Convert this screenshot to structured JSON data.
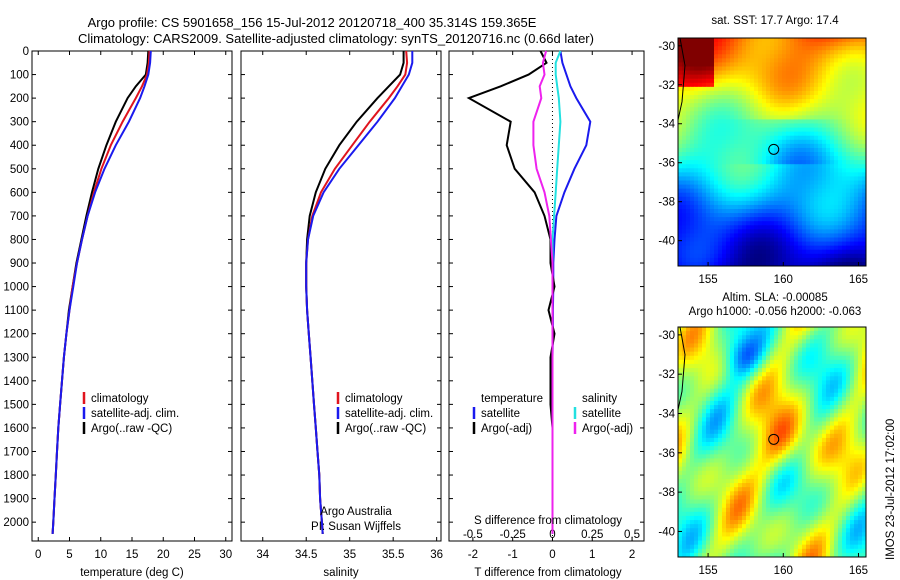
{
  "title": {
    "line1": "Argo profile: CS 5901658_156 15-Jul-2012 20120718_400 35.314S 159.365E",
    "line2": "Climatology: CARS2009. Satellite-adjusted climatology: synTS_20120716.nc (0.66d later)"
  },
  "side_text": "IMOS 23-Jul-2012 17:02:00",
  "credit": {
    "line1": "Argo Australia",
    "line2": "PI: Susan Wijffels"
  },
  "colors": {
    "climatology": "#e0141e",
    "satellite": "#1a1aee",
    "argo": "#000000",
    "sal_satellite": "#22e0e0",
    "sal_argo": "#ee22ee"
  },
  "chart_data": [
    {
      "type": "line",
      "ylabel": "",
      "xlabel": "temperature (deg C)",
      "xlim": [
        -1,
        31
      ],
      "ylim": [
        2080,
        0
      ],
      "xticks": [
        "0",
        "5",
        "10",
        "15",
        "20",
        "25",
        "30"
      ],
      "yticks": [
        "0",
        "100",
        "200",
        "300",
        "400",
        "500",
        "600",
        "700",
        "800",
        "900",
        "1000",
        "1100",
        "1200",
        "1300",
        "1400",
        "1500",
        "1600",
        "1700",
        "1800",
        "1900",
        "2000"
      ],
      "legend": [
        "climatology",
        "satellite-adj. clim.",
        "Argo(..raw -QC)"
      ],
      "legend_position": "lower-center",
      "depth": [
        0,
        50,
        100,
        150,
        200,
        300,
        400,
        500,
        600,
        700,
        800,
        900,
        1000,
        1100,
        1200,
        1300,
        1400,
        1500,
        1600,
        1700,
        1800,
        1900,
        2000,
        2050
      ],
      "series": [
        {
          "name": "climatology",
          "values": [
            17.8,
            17.7,
            17.4,
            16.6,
            15.6,
            13.5,
            11.6,
            10.1,
            8.9,
            7.9,
            7.0,
            6.2,
            5.5,
            5.0,
            4.5,
            4.1,
            3.8,
            3.5,
            3.2,
            3.0,
            2.8,
            2.6,
            2.4,
            2.3
          ]
        },
        {
          "name": "satellite-adj. clim.",
          "values": [
            18.0,
            17.9,
            17.6,
            17.0,
            16.3,
            14.5,
            12.4,
            10.6,
            9.1,
            7.9,
            7.0,
            6.2,
            5.6,
            5.0,
            4.5,
            4.1,
            3.8,
            3.5,
            3.2,
            3.0,
            2.8,
            2.6,
            2.4,
            2.3
          ]
        },
        {
          "name": "Argo(..raw -QC)",
          "values": [
            17.6,
            17.5,
            17.2,
            15.6,
            14.3,
            12.4,
            10.9,
            9.6,
            8.6,
            7.7,
            6.9,
            6.1,
            5.5,
            4.9,
            4.5,
            4.1,
            3.8,
            3.5,
            3.2,
            3.0,
            2.8,
            2.6,
            2.4,
            2.3
          ]
        }
      ]
    },
    {
      "type": "line",
      "ylabel": "",
      "xlabel": "salinity",
      "xlim": [
        33.75,
        36.05
      ],
      "ylim": [
        2080,
        0
      ],
      "xticks": [
        "34",
        "34.5",
        "35",
        "35.5",
        "36"
      ],
      "legend": [
        "climatology",
        "satellite-adj. clim.",
        "Argo(..raw -QC)"
      ],
      "legend_position": "lower-center",
      "depth": [
        0,
        50,
        100,
        150,
        200,
        300,
        400,
        500,
        600,
        700,
        800,
        900,
        1000,
        1100,
        1200,
        1300,
        1400,
        1500,
        1600,
        1700,
        1800,
        1900,
        2000,
        2050
      ],
      "series": [
        {
          "name": "climatology",
          "values": [
            35.65,
            35.66,
            35.64,
            35.55,
            35.45,
            35.23,
            35.03,
            34.83,
            34.67,
            34.57,
            34.52,
            34.5,
            34.5,
            34.51,
            34.53,
            34.55,
            34.57,
            34.59,
            34.61,
            34.63,
            34.65,
            34.66,
            34.68,
            34.69
          ]
        },
        {
          "name": "satellite-adj. clim.",
          "values": [
            35.72,
            35.72,
            35.68,
            35.6,
            35.52,
            35.32,
            35.1,
            34.88,
            34.7,
            34.58,
            34.52,
            34.5,
            34.5,
            34.51,
            34.53,
            34.55,
            34.57,
            34.59,
            34.61,
            34.63,
            34.65,
            34.66,
            34.68,
            34.69
          ]
        },
        {
          "name": "Argo(..raw -QC)",
          "values": [
            35.62,
            35.62,
            35.58,
            35.45,
            35.32,
            35.08,
            34.88,
            34.72,
            34.61,
            34.54,
            34.51,
            34.5,
            34.5,
            34.51,
            34.53,
            34.55,
            34.57,
            34.59,
            34.61,
            34.63,
            34.65,
            34.66,
            34.68,
            34.69
          ]
        }
      ]
    },
    {
      "type": "line",
      "xlabel": "T difference from climatology",
      "xlabel_top": "S difference from climatology",
      "xlim": [
        -2.6,
        2.3
      ],
      "ylim": [
        2080,
        0
      ],
      "xticks": [
        "-2",
        "-1",
        "0",
        "1",
        "2"
      ],
      "xticks_top": [
        "-0.5",
        "-0.25",
        "0",
        "0.25",
        "0.5"
      ],
      "legend_temperature": {
        "heading": "temperature",
        "items": [
          "satellite",
          "Argo(-adj)"
        ]
      },
      "legend_salinity": {
        "heading": "salinity",
        "items": [
          "satellite",
          "Argo(-adj)"
        ]
      },
      "depth": [
        0,
        50,
        100,
        150,
        200,
        300,
        400,
        500,
        600,
        700,
        800,
        900,
        1000,
        1100,
        1200,
        1300,
        1400,
        1500,
        1600,
        1700,
        1800,
        1900,
        2000,
        2050
      ],
      "series": [
        {
          "name": "T satellite",
          "values": [
            0.2,
            0.25,
            0.35,
            0.45,
            0.6,
            0.95,
            0.85,
            0.55,
            0.3,
            0.1,
            0.05,
            0.02,
            0.02,
            0.01,
            0.01,
            0.0,
            0.0,
            0.0,
            0.0,
            0.0,
            0.0,
            0.0,
            0.0,
            0.0
          ]
        },
        {
          "name": "T Argo(-adj)",
          "values": [
            -0.3,
            -0.15,
            -0.6,
            -1.3,
            -2.1,
            -1.05,
            -1.15,
            -0.95,
            -0.45,
            -0.2,
            -0.05,
            -0.05,
            0.05,
            -0.1,
            0.05,
            -0.05,
            -0.05,
            -0.05,
            0.0,
            0.0,
            0.0,
            0.0,
            0.0,
            0.0
          ]
        },
        {
          "name": "S satellite",
          "values": [
            0.05,
            0.02,
            0.02,
            0.03,
            0.04,
            0.05,
            0.04,
            0.03,
            0.02,
            0.01,
            0.0,
            0.0,
            0.0,
            0.0,
            0.0,
            0.0,
            0.0,
            0.0,
            0.0,
            0.0,
            0.0,
            0.0,
            0.0,
            0.0
          ]
        },
        {
          "name": "S Argo(-adj)",
          "values": [
            -0.04,
            -0.06,
            -0.05,
            -0.08,
            -0.07,
            -0.12,
            -0.12,
            -0.1,
            -0.05,
            -0.02,
            -0.01,
            0.0,
            0.0,
            0.0,
            0.0,
            0.0,
            0.0,
            0.0,
            0.0,
            0.0,
            0.0,
            0.0,
            0.0,
            0.0
          ]
        }
      ]
    },
    {
      "type": "heatmap",
      "title": "sat. SST: 17.7  Argo: 17.4",
      "xlim": [
        153,
        165.5
      ],
      "ylim": [
        -41.3,
        -29.6
      ],
      "xticks": [
        "155",
        "160",
        "165"
      ],
      "yticks": [
        "-30",
        "-32",
        "-34",
        "-36",
        "-38",
        "-40"
      ],
      "marker": {
        "lon": 159.365,
        "lat": -35.314
      },
      "colormap": "jet"
    },
    {
      "type": "heatmap",
      "title": "Altim. SLA: -0.00085",
      "subtitle": "Argo h1000: -0.056  h2000: -0.063",
      "xlim": [
        153,
        165.5
      ],
      "ylim": [
        -41.3,
        -29.6
      ],
      "xticks": [
        "155",
        "160",
        "165"
      ],
      "yticks": [
        "-30",
        "-32",
        "-34",
        "-36",
        "-38",
        "-40"
      ],
      "marker": {
        "lon": 159.365,
        "lat": -35.314
      },
      "colormap": "jet"
    }
  ]
}
